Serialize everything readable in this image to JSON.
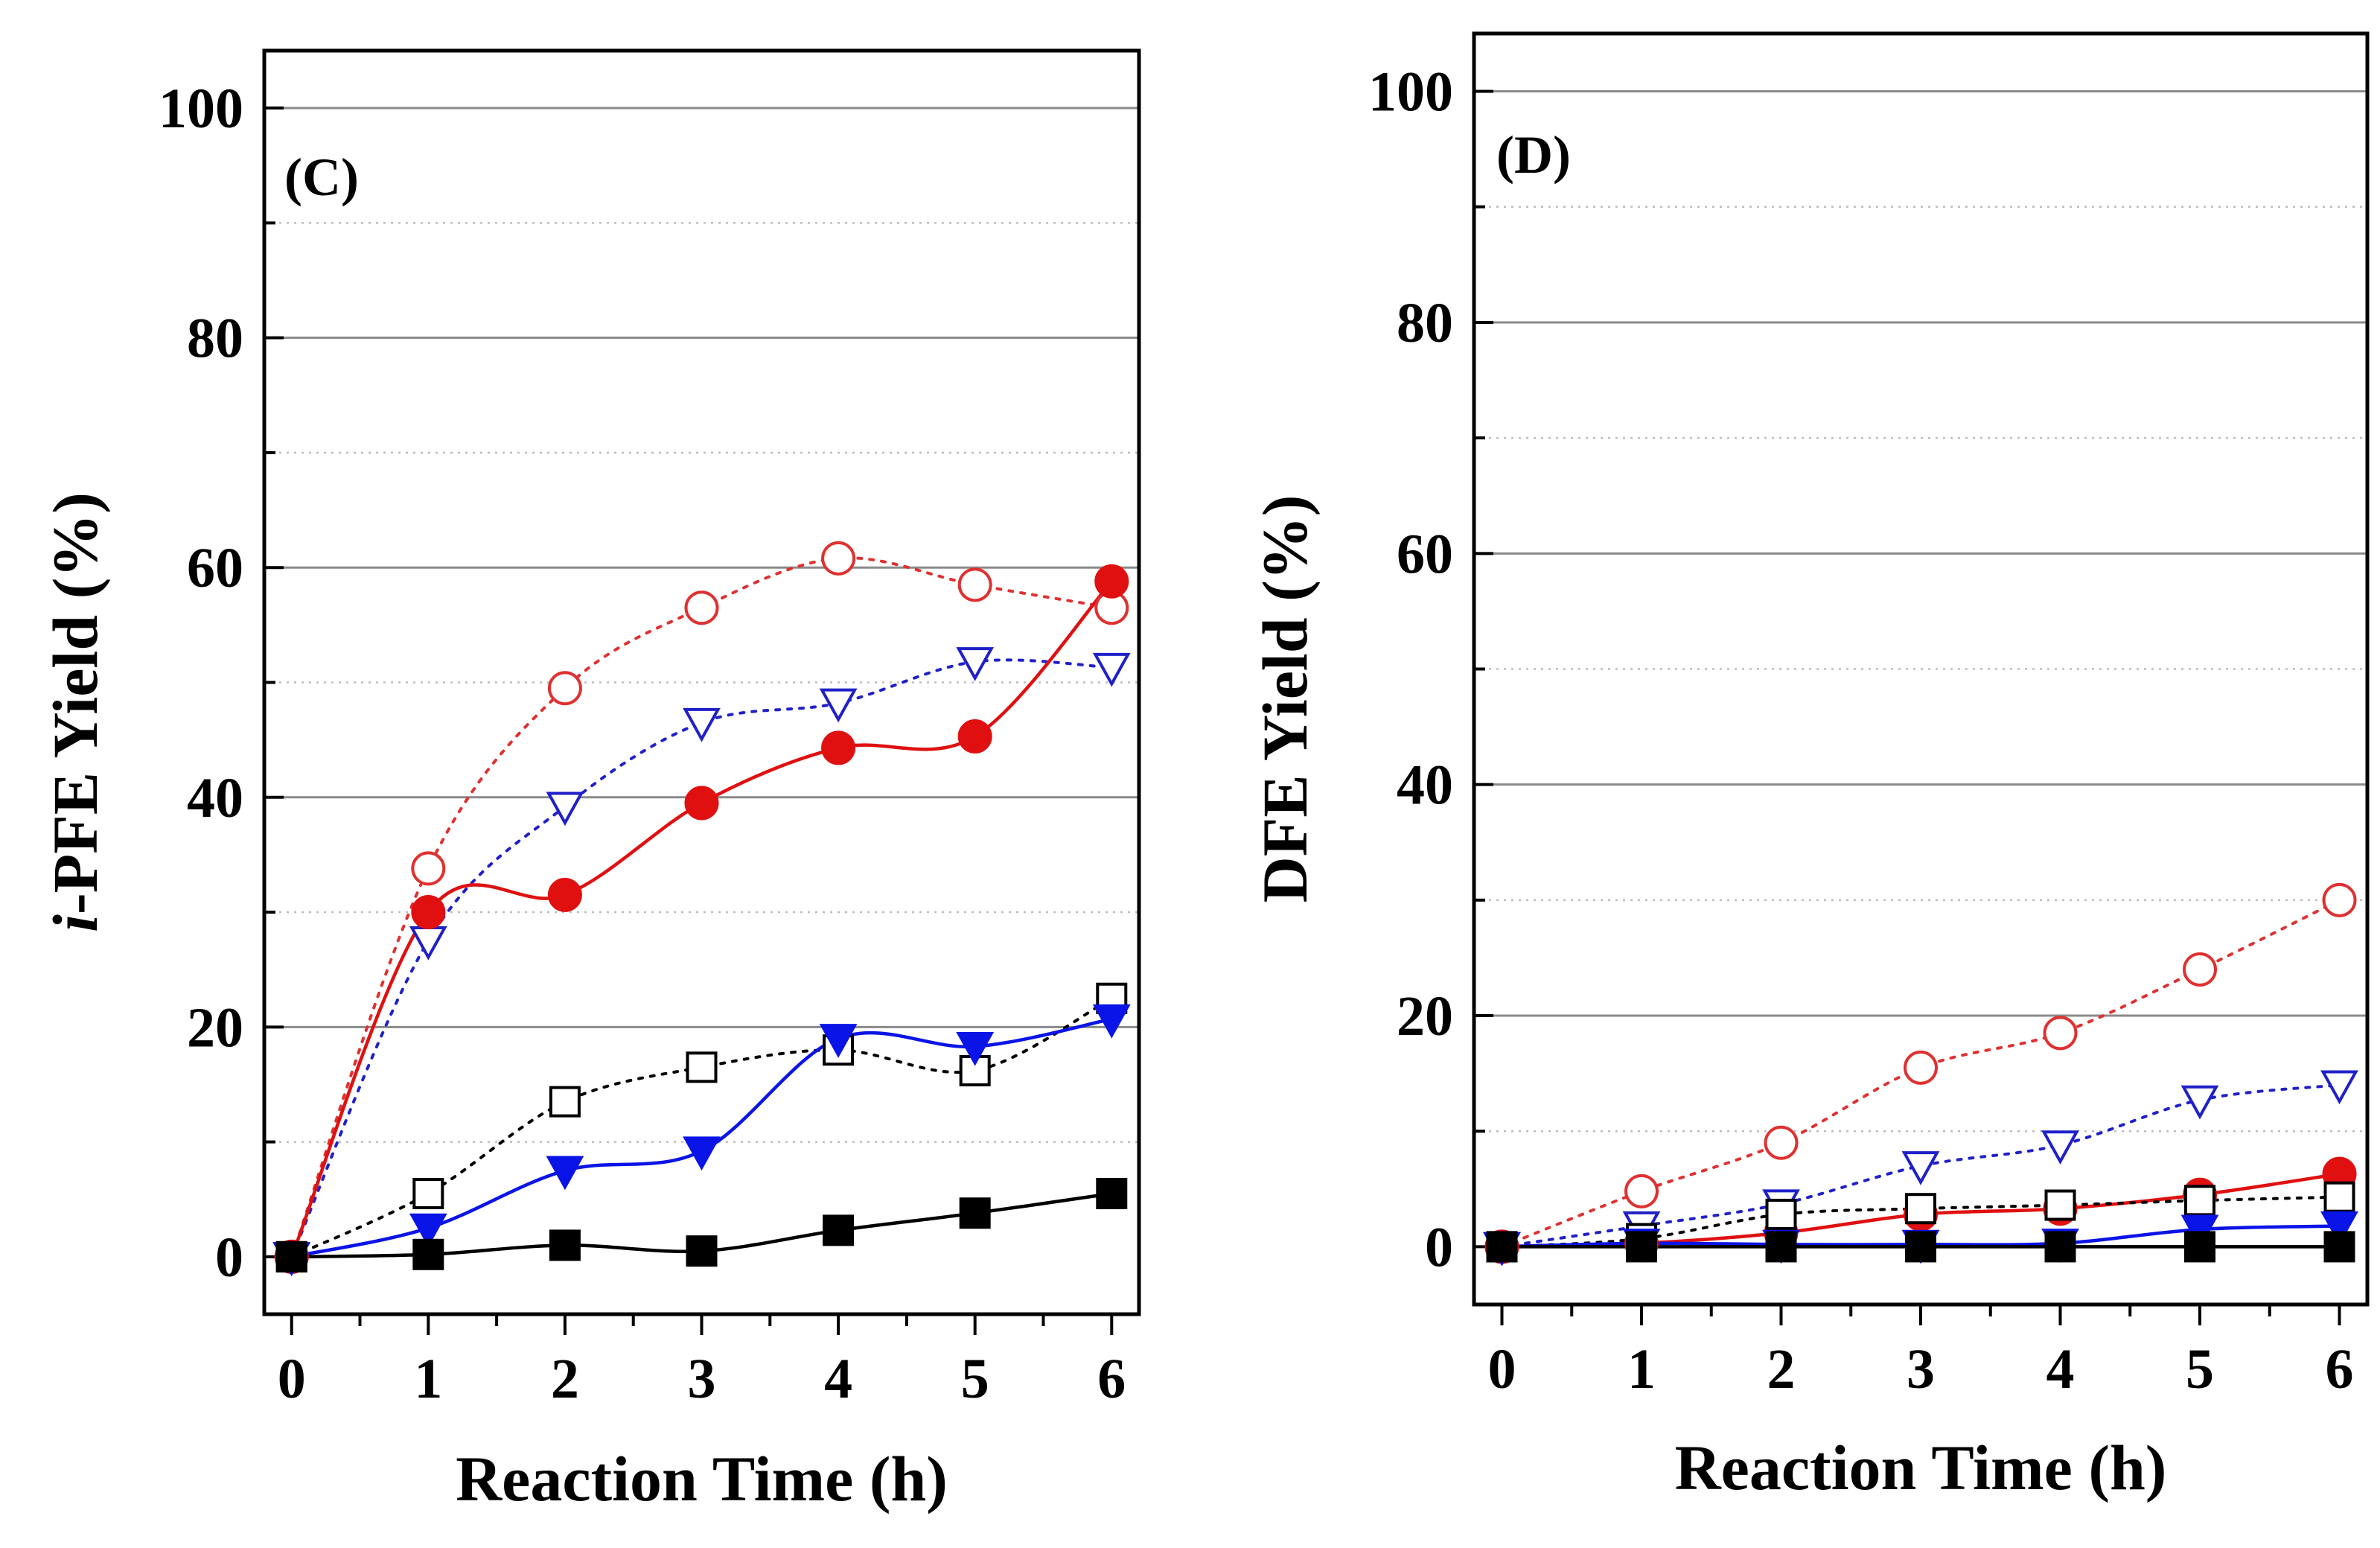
{
  "chart_data": [
    {
      "type": "line",
      "panel_label": "(C)",
      "xlabel": "Reaction Time (h)",
      "ylabel_italic": "i",
      "ylabel_rest": "-PFE Yield (%)",
      "x": [
        0,
        1,
        2,
        3,
        4,
        5,
        6
      ],
      "xlim": [
        -0.2,
        6.2
      ],
      "ylim": [
        -5,
        105
      ],
      "xticks": [
        "0",
        "1",
        "2",
        "3",
        "4",
        "5",
        "6"
      ],
      "yticks": [
        "0",
        "20",
        "40",
        "60",
        "80",
        "100"
      ],
      "grid": "horizontal",
      "series": [
        {
          "name": "open-circle-red",
          "marker": "circle",
          "filled": false,
          "color": "#e03030",
          "line": "dotted",
          "values": [
            0,
            33.8,
            49.5,
            56.5,
            60.8,
            58.5,
            56.5
          ]
        },
        {
          "name": "open-triangle-blue",
          "marker": "triangle-down",
          "filled": false,
          "color": "#2020c8",
          "line": "dotted",
          "values": [
            0,
            27.5,
            39.2,
            46.5,
            48.2,
            51.8,
            51.3
          ]
        },
        {
          "name": "filled-circle-red",
          "marker": "circle",
          "filled": true,
          "color": "#e01010",
          "line": "solid",
          "values": [
            0,
            30.0,
            31.5,
            39.5,
            44.3,
            45.3,
            58.8
          ]
        },
        {
          "name": "open-square-black",
          "marker": "square",
          "filled": false,
          "color": "#000000",
          "line": "dotted",
          "values": [
            0,
            5.5,
            13.5,
            16.5,
            18.0,
            16.2,
            22.5
          ]
        },
        {
          "name": "filled-triangle-blue",
          "marker": "triangle-down",
          "filled": true,
          "color": "#0a14e6",
          "line": "solid",
          "values": [
            0,
            2.5,
            7.5,
            9.2,
            19.0,
            18.3,
            20.7
          ]
        },
        {
          "name": "filled-square-black",
          "marker": "square",
          "filled": true,
          "color": "#000000",
          "line": "solid",
          "values": [
            0,
            0.2,
            1.0,
            0.5,
            2.3,
            3.8,
            5.5
          ]
        }
      ]
    },
    {
      "type": "line",
      "panel_label": "(D)",
      "xlabel": "Reaction Time (h)",
      "ylabel_italic": "",
      "ylabel_rest": "DFE Yield (%)",
      "x": [
        0,
        1,
        2,
        3,
        4,
        5,
        6
      ],
      "xlim": [
        -0.2,
        6.2
      ],
      "ylim": [
        -5,
        105
      ],
      "xticks": [
        "0",
        "1",
        "2",
        "3",
        "4",
        "5",
        "6"
      ],
      "yticks": [
        "0",
        "20",
        "40",
        "60",
        "80",
        "100"
      ],
      "grid": "horizontal",
      "series": [
        {
          "name": "open-circle-red",
          "marker": "circle",
          "filled": false,
          "color": "#e03030",
          "line": "dotted",
          "values": [
            0,
            4.8,
            9.0,
            15.5,
            18.5,
            24.0,
            30.0
          ]
        },
        {
          "name": "open-triangle-blue",
          "marker": "triangle-down",
          "filled": false,
          "color": "#2020c8",
          "line": "dotted",
          "values": [
            0,
            1.8,
            3.7,
            7.0,
            8.8,
            12.7,
            14.0
          ]
        },
        {
          "name": "filled-circle-red",
          "marker": "circle",
          "filled": true,
          "color": "#e01010",
          "line": "solid",
          "values": [
            0,
            0.3,
            1.2,
            2.8,
            3.3,
            4.5,
            6.3
          ]
        },
        {
          "name": "open-square-black",
          "marker": "square",
          "filled": false,
          "color": "#000000",
          "line": "dotted",
          "values": [
            0,
            0.7,
            2.8,
            3.3,
            3.6,
            4.0,
            4.3
          ]
        },
        {
          "name": "filled-triangle-blue",
          "marker": "triangle-down",
          "filled": true,
          "color": "#0a14e6",
          "line": "solid",
          "values": [
            0,
            0.3,
            0.2,
            0.2,
            0.3,
            1.5,
            1.8
          ]
        },
        {
          "name": "filled-square-black",
          "marker": "square",
          "filled": true,
          "color": "#000000",
          "line": "solid",
          "values": [
            0,
            0,
            0,
            0,
            0,
            0,
            0
          ]
        }
      ]
    }
  ]
}
